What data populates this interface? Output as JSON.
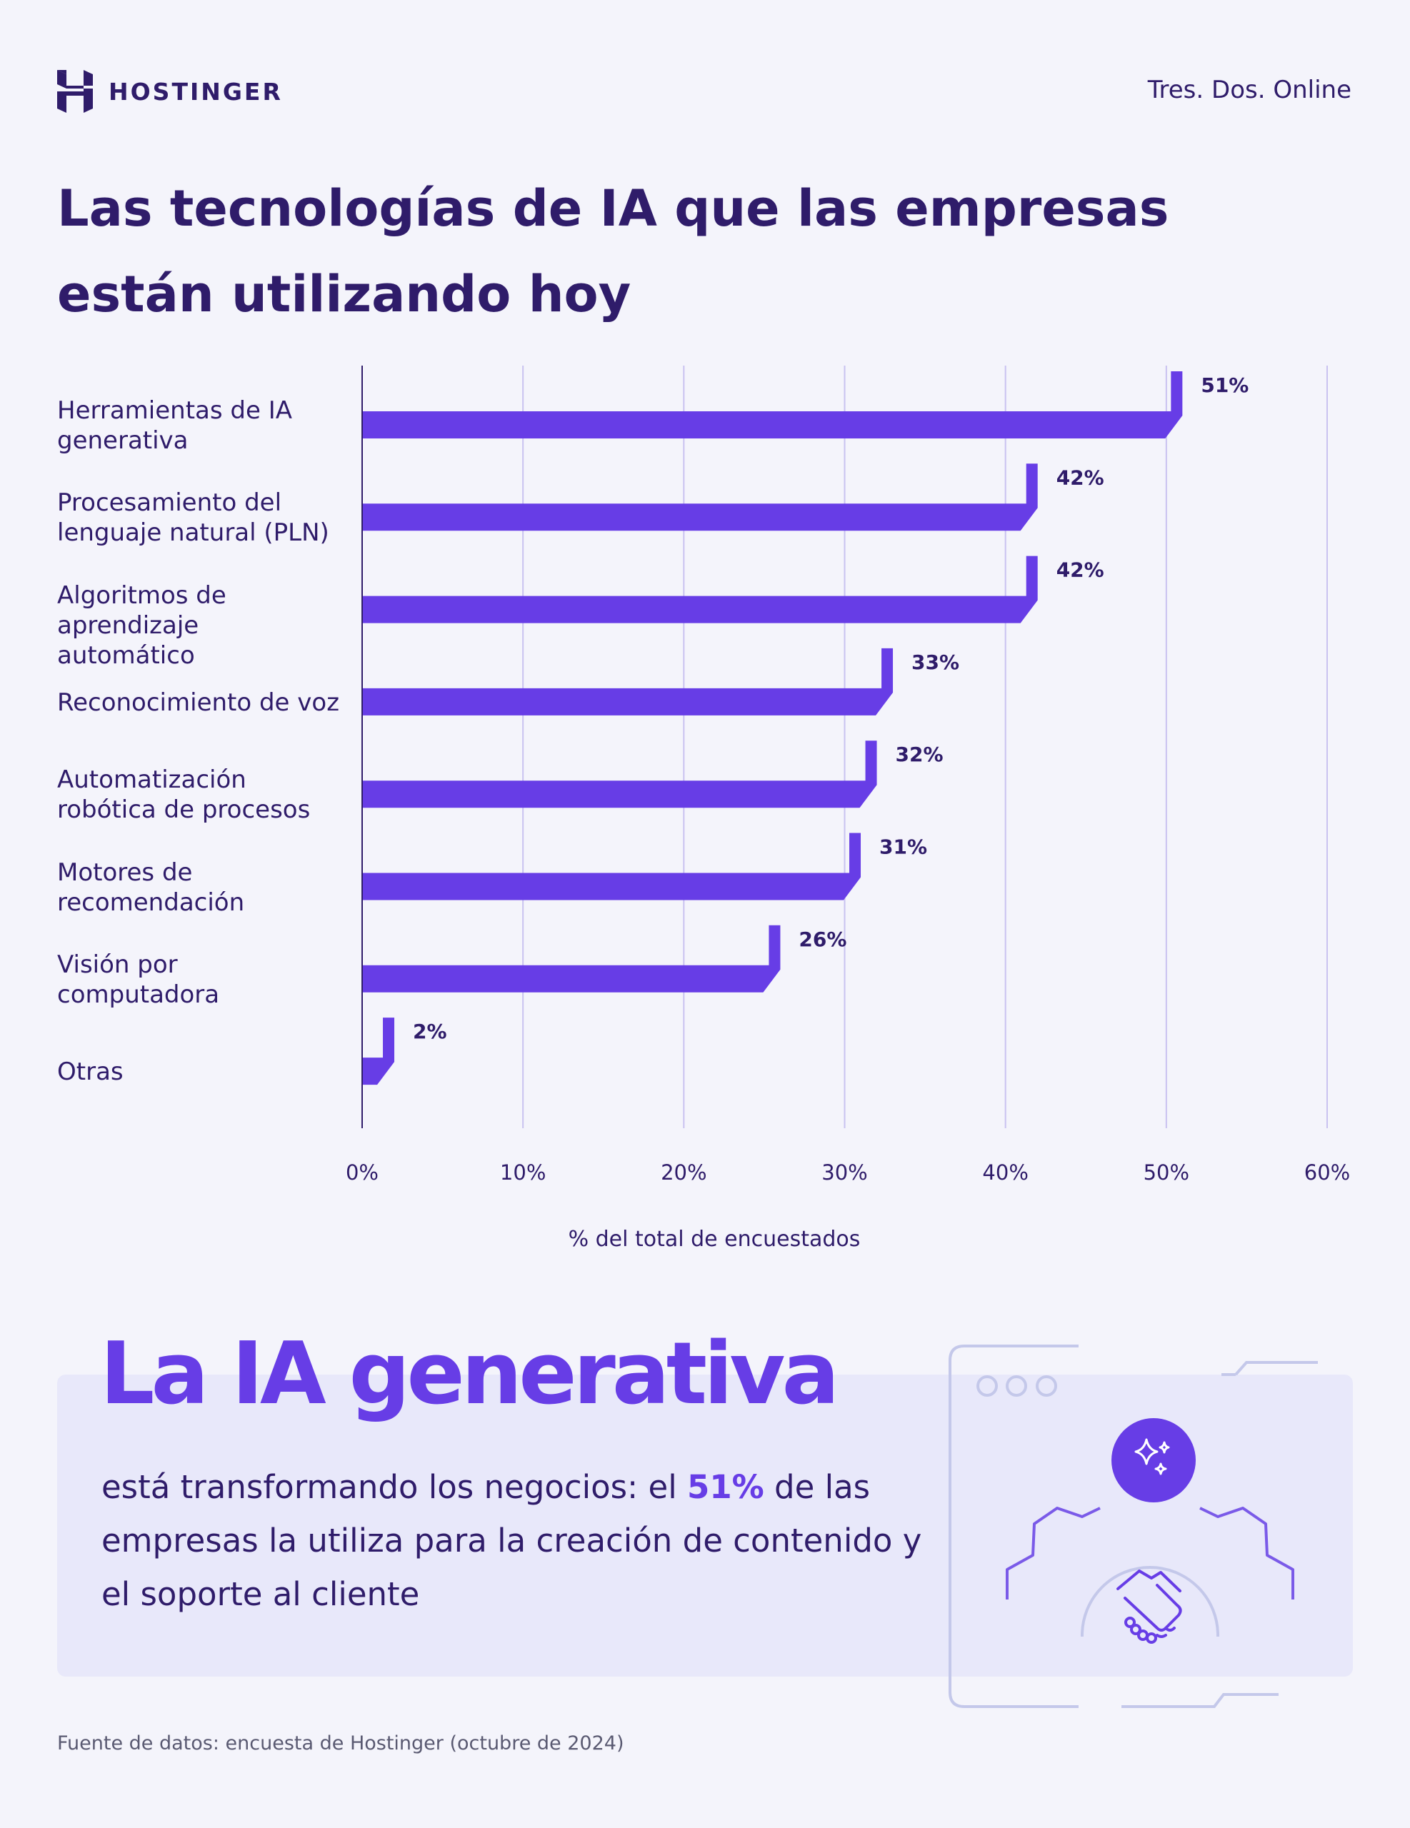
{
  "header": {
    "logo_text": "HOSTINGER",
    "brand_right": "Tres. Dos. Online"
  },
  "title": "Las tecnologías de IA que las empresas están utilizando hoy",
  "chart_data": {
    "type": "bar",
    "orientation": "horizontal",
    "categories": [
      [
        "Herramientas de IA",
        "generativa"
      ],
      [
        "Procesamiento del",
        "lenguaje natural (PLN)"
      ],
      [
        "Algoritmos de",
        "aprendizaje automático"
      ],
      [
        "Reconocimiento de voz"
      ],
      [
        "Automatización",
        "robótica de procesos"
      ],
      [
        "Motores de",
        "recomendación"
      ],
      [
        "Visión por",
        "computadora"
      ],
      [
        "Otras"
      ]
    ],
    "values": [
      51,
      42,
      42,
      33,
      32,
      31,
      26,
      2
    ],
    "value_labels": [
      "51%",
      "42%",
      "42%",
      "33%",
      "32%",
      "31%",
      "26%",
      "2%"
    ],
    "xlim": [
      0,
      60
    ],
    "xticks": [
      0,
      10,
      20,
      30,
      40,
      50,
      60
    ],
    "xtick_labels": [
      "0%",
      "10%",
      "20%",
      "30%",
      "40%",
      "50%",
      "60%"
    ],
    "xlabel": "% del total de encuestados",
    "grid": "vertical",
    "bar_color": "#673de6",
    "grid_color": "#c9c2f0"
  },
  "callout": {
    "title": "La IA generativa",
    "text_before": "está transformando los negocios: el ",
    "highlight": "51%",
    "text_after": " de las empresas la utiliza para la creación de contenido y el soporte al cliente",
    "accent_color": "#673de6"
  },
  "illustration": {
    "icons": [
      "sparkles-icon",
      "handshake-icon",
      "gear-icon"
    ]
  },
  "source": "Fuente de datos: encuesta de Hostinger (octubre de 2024)"
}
